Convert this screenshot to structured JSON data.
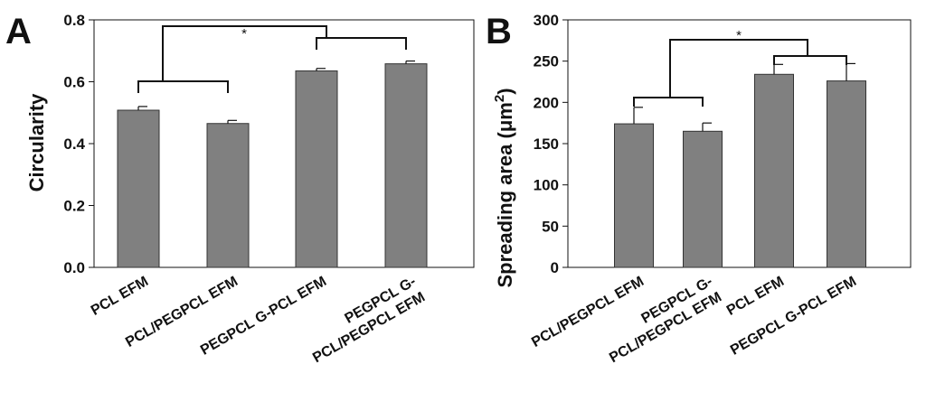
{
  "chart_data": [
    {
      "type": "bar",
      "panel": "A",
      "categories": [
        "PCL EFM",
        "PCL/PEGPCL EFM",
        "PEGPCL G-PCL EFM",
        "PEGPCL G-\nPCL/PEGPCL EFM"
      ],
      "values": [
        0.508,
        0.465,
        0.635,
        0.658
      ],
      "errors": [
        0.012,
        0.01,
        0.008,
        0.009
      ],
      "ylabel": "Circularity",
      "ylim": [
        0,
        0.8
      ],
      "yticks": [
        "0.0",
        "0.2",
        "0.4",
        "0.6",
        "0.8"
      ],
      "significance": "*",
      "bar_color": "#808080",
      "grid": false
    },
    {
      "type": "bar",
      "panel": "B",
      "categories": [
        "PCL/PEGPCL EFM",
        "PEGPCL G-\nPCL/PEGPCL EFM",
        "PCL EFM",
        "PEGPCL G-PCL EFM"
      ],
      "values": [
        174,
        165,
        234,
        226
      ],
      "errors": [
        20,
        10,
        12,
        21
      ],
      "ylabel": "Spreading area (μm",
      "ylabel_superscript": "2",
      "ylabel_close": ")",
      "ylim": [
        0,
        300
      ],
      "yticks": [
        "0",
        "50",
        "100",
        "150",
        "200",
        "250",
        "300"
      ],
      "significance": "*",
      "bar_color": "#808080",
      "grid": false
    }
  ]
}
